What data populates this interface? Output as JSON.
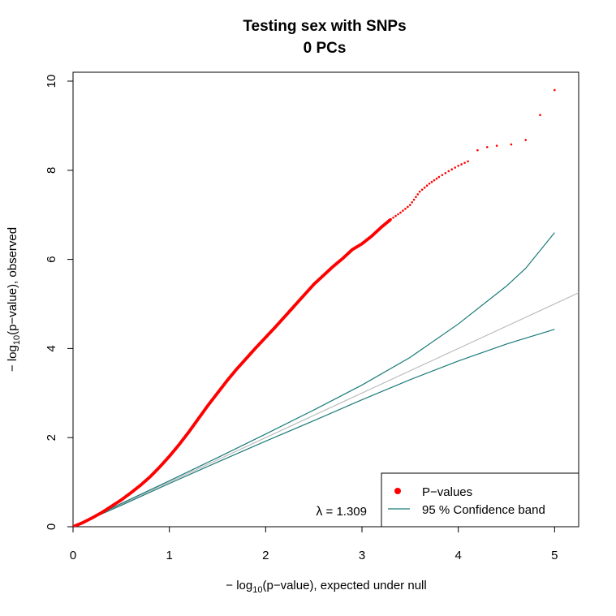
{
  "chart_data": {
    "type": "scatter",
    "title": "Testing sex with SNPs",
    "subtitle": "0 PCs",
    "xlabel": {
      "prefix": "− log",
      "sub": "10",
      "suffix": "(p−value), expected under null"
    },
    "ylabel": {
      "prefix": "− log",
      "sub": "10",
      "suffix": "(p−value), observed"
    },
    "xlim": [
      0,
      5.25
    ],
    "ylim": [
      0,
      10.2
    ],
    "x_ticks": [
      "0",
      "1",
      "2",
      "3",
      "4",
      "5"
    ],
    "y_ticks": [
      "0",
      "2",
      "4",
      "6",
      "8",
      "10"
    ],
    "grid": false,
    "legend_position": "bottom-right",
    "legend": [
      {
        "label": "P−values",
        "symbol": "point",
        "color": "#ff0000"
      },
      {
        "label": "95 % Confidence band",
        "symbol": "line",
        "color": "#1b7a7a"
      }
    ],
    "annotation": {
      "lambda_symbol": "λ",
      "lambda_text": " = 1.309"
    },
    "series": [
      {
        "name": "P−values",
        "color": "#ff0000",
        "points": [
          [
            0.0,
            0.0
          ],
          [
            0.1,
            0.09
          ],
          [
            0.2,
            0.2
          ],
          [
            0.3,
            0.32
          ],
          [
            0.4,
            0.46
          ],
          [
            0.5,
            0.6
          ],
          [
            0.6,
            0.76
          ],
          [
            0.7,
            0.93
          ],
          [
            0.8,
            1.12
          ],
          [
            0.9,
            1.34
          ],
          [
            1.0,
            1.58
          ],
          [
            1.1,
            1.84
          ],
          [
            1.2,
            2.12
          ],
          [
            1.3,
            2.42
          ],
          [
            1.4,
            2.72
          ],
          [
            1.5,
            3.0
          ],
          [
            1.6,
            3.28
          ],
          [
            1.7,
            3.54
          ],
          [
            1.8,
            3.78
          ],
          [
            1.9,
            4.02
          ],
          [
            2.0,
            4.25
          ],
          [
            2.1,
            4.48
          ],
          [
            2.2,
            4.72
          ],
          [
            2.3,
            4.96
          ],
          [
            2.4,
            5.2
          ],
          [
            2.5,
            5.44
          ],
          [
            2.6,
            5.64
          ],
          [
            2.7,
            5.84
          ],
          [
            2.8,
            6.02
          ],
          [
            2.9,
            6.22
          ],
          [
            3.0,
            6.35
          ],
          [
            3.1,
            6.52
          ],
          [
            3.2,
            6.72
          ],
          [
            3.3,
            6.9
          ],
          [
            3.4,
            7.05
          ],
          [
            3.5,
            7.22
          ],
          [
            3.6,
            7.52
          ],
          [
            3.7,
            7.7
          ],
          [
            3.8,
            7.85
          ],
          [
            3.9,
            7.98
          ],
          [
            4.0,
            8.1
          ],
          [
            4.1,
            8.2
          ],
          [
            4.2,
            8.45
          ],
          [
            4.3,
            8.52
          ],
          [
            4.4,
            8.55
          ],
          [
            4.55,
            8.58
          ],
          [
            4.7,
            8.68
          ],
          [
            5.0,
            9.8
          ]
        ]
      }
    ],
    "reference_line": {
      "color": "#bbbbbb",
      "slope": 1,
      "intercept": 0
    },
    "confidence_band": {
      "color": "#1b7a7a",
      "upper": [
        [
          0,
          0
        ],
        [
          0.5,
          0.52
        ],
        [
          1.0,
          1.03
        ],
        [
          1.5,
          1.55
        ],
        [
          2.0,
          2.08
        ],
        [
          2.5,
          2.62
        ],
        [
          3.0,
          3.18
        ],
        [
          3.5,
          3.8
        ],
        [
          4.0,
          4.55
        ],
        [
          4.5,
          5.4
        ],
        [
          4.7,
          5.8
        ],
        [
          5.0,
          6.6
        ]
      ],
      "lower": [
        [
          0,
          0
        ],
        [
          0.5,
          0.48
        ],
        [
          1.0,
          0.97
        ],
        [
          1.5,
          1.45
        ],
        [
          2.0,
          1.92
        ],
        [
          2.5,
          2.38
        ],
        [
          3.0,
          2.85
        ],
        [
          3.5,
          3.3
        ],
        [
          4.0,
          3.72
        ],
        [
          4.5,
          4.1
        ],
        [
          5.0,
          4.43
        ]
      ]
    }
  }
}
